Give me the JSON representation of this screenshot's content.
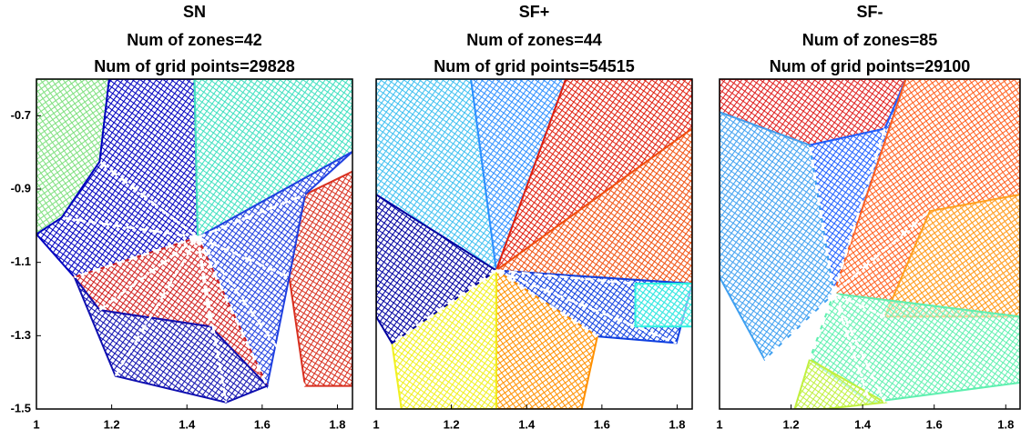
{
  "chart_data": [
    {
      "type": "mesh",
      "title": "SN",
      "annotations": [
        "Num of zones=42",
        "Num of grid points=29828"
      ],
      "xlim": [
        1,
        1.84
      ],
      "ylim": [
        -1.5,
        -0.6
      ],
      "xticks": [
        1,
        1.2,
        1.4,
        1.6,
        1.8
      ],
      "yticks": [
        -1.5,
        -1.3,
        -1.1,
        -0.9,
        -0.7
      ]
    },
    {
      "type": "mesh",
      "title": "SF+",
      "annotations": [
        "Num of zones=44",
        "Num of grid points=54515"
      ],
      "xlim": [
        1,
        1.84
      ],
      "ylim": [
        -1.5,
        -0.6
      ],
      "xticks": [
        1,
        1.2,
        1.4,
        1.6,
        1.8
      ]
    },
    {
      "type": "mesh",
      "title": "SF-",
      "annotations": [
        "Num of zones=85",
        "Num of grid points=29100"
      ],
      "xlim": [
        1,
        1.84
      ],
      "ylim": [
        -1.5,
        -0.6
      ],
      "xticks": [
        1,
        1.2,
        1.4,
        1.6,
        1.8
      ]
    }
  ]
}
